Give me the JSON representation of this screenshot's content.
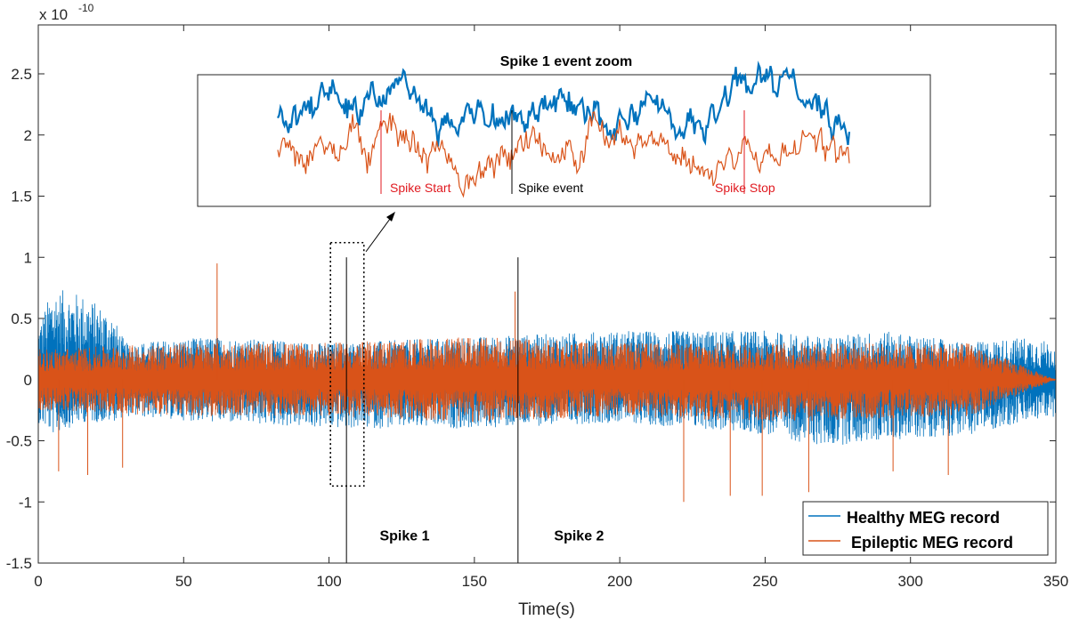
{
  "chart_data": {
    "type": "line",
    "xlabel": "Time(s)",
    "ylabel": "",
    "exponent_label": "x 10",
    "exponent_power": "-10",
    "xlim": [
      0,
      350
    ],
    "ylim": [
      -1.5,
      2.9
    ],
    "xticks": [
      0,
      50,
      100,
      150,
      200,
      250,
      300,
      350
    ],
    "xtick_labels": [
      "0",
      "50",
      "100",
      "150",
      "200",
      "250",
      "300",
      "350"
    ],
    "yticks": [
      -1.5,
      -1,
      -0.5,
      0,
      0.5,
      1,
      1.5,
      2,
      2.5
    ],
    "ytick_labels": [
      "-1.5",
      "-1",
      "-0.5",
      "0",
      "0.5",
      "1",
      "1.5",
      "2",
      "2.5"
    ],
    "series": [
      {
        "name": "Healthy MEG record",
        "color": "#0072BD",
        "envelope": [
          {
            "x": 0,
            "upper": 0.45,
            "lower": -0.35
          },
          {
            "x": 5,
            "upper": 0.75,
            "lower": -0.45
          },
          {
            "x": 15,
            "upper": 0.7,
            "lower": -0.35
          },
          {
            "x": 25,
            "upper": 0.55,
            "lower": -0.35
          },
          {
            "x": 30,
            "upper": 0.3,
            "lower": -0.3
          },
          {
            "x": 60,
            "upper": 0.35,
            "lower": -0.35
          },
          {
            "x": 100,
            "upper": 0.3,
            "lower": -0.4
          },
          {
            "x": 150,
            "upper": 0.35,
            "lower": -0.4
          },
          {
            "x": 200,
            "upper": 0.4,
            "lower": -0.35
          },
          {
            "x": 250,
            "upper": 0.4,
            "lower": -0.45
          },
          {
            "x": 270,
            "upper": 0.35,
            "lower": -0.55
          },
          {
            "x": 290,
            "upper": 0.4,
            "lower": -0.5
          },
          {
            "x": 320,
            "upper": 0.3,
            "lower": -0.45
          },
          {
            "x": 340,
            "upper": 0.35,
            "lower": -0.35
          },
          {
            "x": 350,
            "upper": 0.3,
            "lower": -0.3
          }
        ]
      },
      {
        "name": "Epileptic MEG record",
        "color": "#D95319",
        "envelope": [
          {
            "x": 0,
            "upper": 0.25,
            "lower": -0.25
          },
          {
            "x": 50,
            "upper": 0.3,
            "lower": -0.3
          },
          {
            "x": 100,
            "upper": 0.3,
            "lower": -0.3
          },
          {
            "x": 150,
            "upper": 0.35,
            "lower": -0.35
          },
          {
            "x": 200,
            "upper": 0.3,
            "lower": -0.3
          },
          {
            "x": 250,
            "upper": 0.3,
            "lower": -0.35
          },
          {
            "x": 320,
            "upper": 0.3,
            "lower": -0.3
          },
          {
            "x": 350,
            "upper": 0.0,
            "lower": 0.0
          }
        ],
        "spikes": [
          {
            "x": 61.5,
            "y": 0.95
          },
          {
            "x": 164,
            "y": 0.72
          },
          {
            "x": 7,
            "y": -0.75
          },
          {
            "x": 17,
            "y": -0.78
          },
          {
            "x": 29,
            "y": -0.72
          },
          {
            "x": 222,
            "y": -1.0
          },
          {
            "x": 238,
            "y": -0.95
          },
          {
            "x": 249,
            "y": -0.95
          },
          {
            "x": 265,
            "y": -0.92
          },
          {
            "x": 294,
            "y": -0.75
          },
          {
            "x": 313,
            "y": -0.78
          }
        ]
      }
    ],
    "event_lines": [
      {
        "x": 106,
        "y_top": 1.0,
        "y_bottom": -1.5
      },
      {
        "x": 165,
        "y_top": 1.0,
        "y_bottom": -1.5
      }
    ],
    "annotations": [
      {
        "text": "Spike 1",
        "x": 126,
        "y": -1.27
      },
      {
        "text": "Spike 2",
        "x": 186,
        "y": -1.27
      }
    ],
    "zoom_box": {
      "x0": 100.5,
      "x1": 112,
      "y0": -0.87,
      "y1": 1.12
    },
    "inset": {
      "title": "Spike 1 event zoom",
      "labels": {
        "spike_start": "Spike Start",
        "spike_event": "Spike event",
        "spike_stop": "Spike Stop"
      }
    },
    "legend": {
      "placement": "bottom-right"
    }
  }
}
